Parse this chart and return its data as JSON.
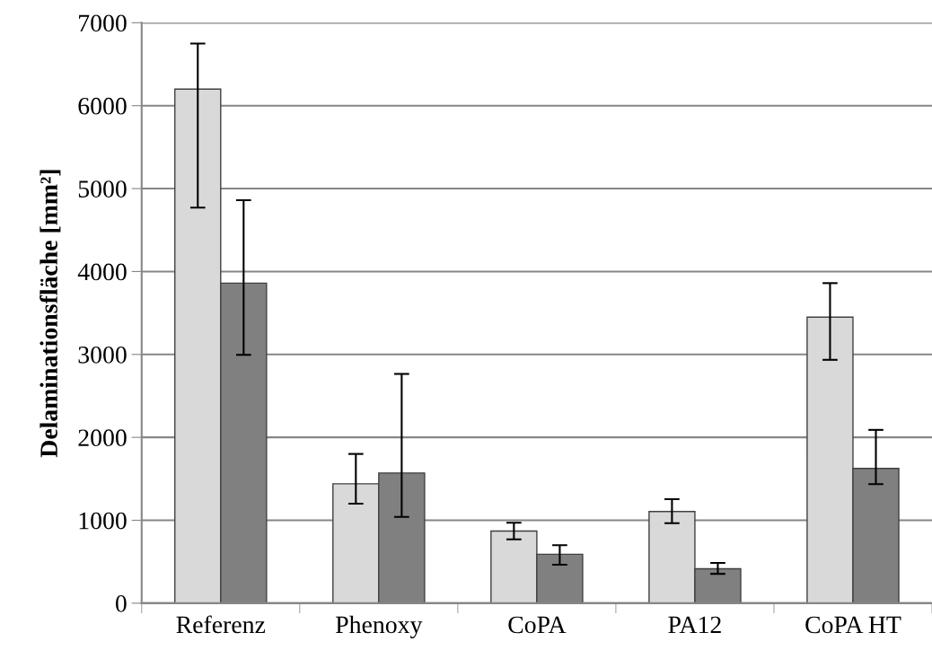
{
  "chart_data": {
    "type": "bar",
    "ylabel": "Delaminationsfläche [mm²]",
    "categories": [
      "Referenz",
      "Phenoxy",
      "CoPA",
      "PA12",
      "CoPA HT"
    ],
    "series": [
      {
        "color": "#d9d9d9",
        "values": [
          6200,
          1440,
          870,
          1105,
          3450
        ],
        "errors": [
          [
            4770,
            6750
          ],
          [
            1200,
            1800
          ],
          [
            770,
            970
          ],
          [
            965,
            1255
          ],
          [
            2935,
            3860
          ]
        ]
      },
      {
        "color": "#808080",
        "values": [
          3860,
          1570,
          590,
          415,
          1625
        ],
        "errors": [
          [
            2995,
            4860
          ],
          [
            1040,
            2765
          ],
          [
            465,
            700
          ],
          [
            355,
            485
          ],
          [
            1435,
            2090
          ]
        ]
      }
    ],
    "ylim": [
      0,
      7000
    ],
    "yticks": [
      0,
      1000,
      2000,
      3000,
      4000,
      5000,
      6000,
      7000
    ],
    "grid": "y"
  }
}
